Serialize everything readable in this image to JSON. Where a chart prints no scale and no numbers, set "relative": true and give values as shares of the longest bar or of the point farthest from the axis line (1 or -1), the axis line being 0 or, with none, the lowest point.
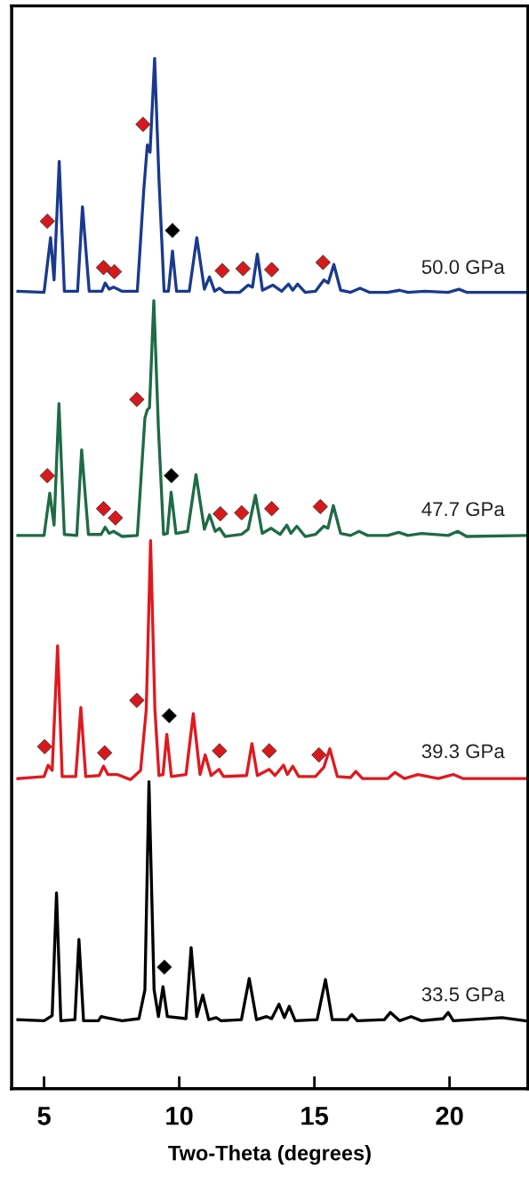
{
  "chart_data": {
    "type": "line",
    "xlabel": "Two-Theta (degrees)",
    "xlim": [
      3.8,
      22.9
    ],
    "xticks": [
      5,
      10,
      15,
      20
    ],
    "relative": true,
    "tick_labels": "x",
    "series": [
      {
        "name": "50.0 GPa",
        "color": "#1a3a8f",
        "x": [
          4.03,
          5.0,
          5.24,
          5.37,
          5.56,
          5.75,
          6.24,
          6.42,
          6.67,
          7.14,
          7.26,
          7.41,
          7.57,
          7.89,
          8.45,
          8.69,
          8.82,
          8.92,
          9.09,
          9.25,
          9.44,
          9.6,
          9.75,
          9.9,
          10.37,
          10.65,
          10.93,
          11.12,
          11.31,
          11.49,
          11.68,
          12.24,
          12.55,
          12.71,
          12.89,
          13.08,
          13.46,
          13.79,
          14.04,
          14.2,
          14.38,
          14.66,
          15.04,
          15.35,
          15.51,
          15.72,
          15.97,
          16.34,
          16.69,
          17.03,
          17.71,
          18.15,
          18.46,
          19.08,
          19.95,
          20.35,
          20.63,
          22.8
        ],
        "values": [
          0.774,
          0.773,
          0.826,
          0.785,
          0.9,
          0.774,
          0.774,
          0.856,
          0.774,
          0.774,
          0.782,
          0.776,
          0.778,
          0.774,
          0.774,
          0.873,
          0.916,
          0.909,
          1.0,
          0.883,
          0.774,
          0.774,
          0.813,
          0.774,
          0.774,
          0.826,
          0.776,
          0.788,
          0.774,
          0.777,
          0.773,
          0.773,
          0.78,
          0.778,
          0.81,
          0.775,
          0.78,
          0.774,
          0.781,
          0.775,
          0.781,
          0.773,
          0.774,
          0.785,
          0.782,
          0.8,
          0.775,
          0.773,
          0.777,
          0.773,
          0.773,
          0.775,
          0.773,
          0.774,
          0.773,
          0.776,
          0.773,
          0.773
        ]
      },
      {
        "name": "47.7 GPa",
        "color": "#1e6b45",
        "x": [
          4.03,
          5.0,
          5.21,
          5.37,
          5.55,
          5.75,
          6.21,
          6.39,
          6.64,
          7.11,
          7.26,
          7.41,
          7.57,
          7.89,
          8.45,
          8.73,
          8.82,
          8.9,
          9.06,
          9.23,
          9.42,
          9.56,
          9.7,
          9.88,
          10.31,
          10.62,
          10.93,
          11.12,
          11.33,
          11.49,
          11.7,
          12.3,
          12.55,
          12.82,
          13.07,
          13.4,
          13.73,
          13.98,
          14.13,
          14.35,
          14.66,
          15.04,
          15.35,
          15.5,
          15.7,
          15.97,
          16.34,
          16.65,
          16.97,
          17.71,
          18.12,
          18.46,
          18.96,
          19.95,
          20.3,
          20.63,
          22.8
        ],
        "values": [
          0.537,
          0.537,
          0.578,
          0.547,
          0.665,
          0.538,
          0.537,
          0.62,
          0.538,
          0.538,
          0.545,
          0.539,
          0.541,
          0.536,
          0.537,
          0.651,
          0.659,
          0.661,
          0.765,
          0.641,
          0.538,
          0.539,
          0.579,
          0.539,
          0.541,
          0.596,
          0.543,
          0.557,
          0.541,
          0.544,
          0.536,
          0.538,
          0.543,
          0.576,
          0.539,
          0.544,
          0.538,
          0.547,
          0.539,
          0.546,
          0.536,
          0.538,
          0.546,
          0.544,
          0.566,
          0.539,
          0.537,
          0.541,
          0.537,
          0.537,
          0.54,
          0.537,
          0.539,
          0.537,
          0.541,
          0.536,
          0.537
        ]
      },
      {
        "name": "39.3 GPa",
        "color": "#e0191f",
        "x": [
          4.03,
          5.0,
          5.15,
          5.3,
          5.5,
          5.67,
          6.17,
          6.36,
          6.54,
          7.04,
          7.2,
          7.36,
          7.7,
          8.2,
          8.57,
          8.78,
          8.94,
          9.1,
          9.25,
          9.4,
          9.54,
          9.71,
          10.25,
          10.52,
          10.77,
          10.96,
          11.18,
          11.47,
          11.64,
          12.49,
          12.69,
          12.89,
          13.33,
          13.54,
          13.86,
          14.0,
          14.2,
          14.42,
          15.04,
          15.35,
          15.57,
          15.85,
          16.34,
          16.53,
          16.78,
          17.71,
          17.98,
          18.33,
          18.83,
          19.58,
          20.14,
          20.51,
          22.8
        ],
        "values": [
          0.301,
          0.303,
          0.314,
          0.309,
          0.43,
          0.303,
          0.303,
          0.37,
          0.303,
          0.304,
          0.313,
          0.305,
          0.305,
          0.3,
          0.309,
          0.368,
          0.532,
          0.368,
          0.304,
          0.305,
          0.344,
          0.303,
          0.305,
          0.364,
          0.305,
          0.324,
          0.304,
          0.31,
          0.303,
          0.304,
          0.335,
          0.304,
          0.31,
          0.304,
          0.314,
          0.305,
          0.313,
          0.303,
          0.303,
          0.312,
          0.33,
          0.303,
          0.302,
          0.308,
          0.301,
          0.301,
          0.307,
          0.301,
          0.305,
          0.301,
          0.305,
          0.301,
          0.301
        ]
      },
      {
        "name": "33.5 GPa",
        "color": "#000000",
        "x": [
          4.03,
          5.0,
          5.3,
          5.46,
          5.62,
          6.14,
          6.29,
          6.46,
          7.01,
          7.11,
          7.29,
          7.89,
          8.51,
          8.73,
          8.88,
          9.07,
          9.23,
          9.4,
          9.56,
          10.25,
          10.44,
          10.65,
          10.87,
          11.09,
          11.37,
          11.55,
          12.3,
          12.59,
          12.86,
          13.23,
          13.42,
          13.69,
          13.89,
          14.07,
          14.29,
          15.1,
          15.41,
          15.66,
          16.22,
          16.38,
          16.59,
          17.59,
          17.81,
          18.15,
          18.58,
          18.96,
          19.76,
          19.95,
          20.14,
          21.94,
          22.8
        ],
        "values": [
          0.067,
          0.066,
          0.071,
          0.19,
          0.066,
          0.067,
          0.145,
          0.066,
          0.066,
          0.07,
          0.069,
          0.066,
          0.068,
          0.096,
          0.298,
          0.096,
          0.07,
          0.099,
          0.07,
          0.068,
          0.137,
          0.07,
          0.091,
          0.067,
          0.069,
          0.066,
          0.067,
          0.107,
          0.067,
          0.07,
          0.068,
          0.082,
          0.069,
          0.08,
          0.066,
          0.067,
          0.106,
          0.067,
          0.067,
          0.072,
          0.066,
          0.067,
          0.074,
          0.066,
          0.07,
          0.066,
          0.068,
          0.074,
          0.066,
          0.069,
          0.066
        ]
      },
      {
        "type": "scatter",
        "marker": "diamond",
        "color": "#d7191c",
        "x": [
          5.12,
          8.66,
          7.2,
          7.6,
          11.59,
          12.36,
          13.42,
          15.32,
          5.12,
          8.43,
          7.2,
          7.64,
          11.52,
          12.31,
          13.42,
          15.22,
          5.02,
          7.24,
          8.43,
          11.49,
          13.33,
          15.17
        ],
        "values": [
          0.842,
          0.936,
          0.797,
          0.793,
          0.794,
          0.796,
          0.795,
          0.802,
          0.595,
          0.669,
          0.563,
          0.554,
          0.558,
          0.559,
          0.563,
          0.565,
          0.332,
          0.326,
          0.377,
          0.328,
          0.328,
          0.324
        ]
      },
      {
        "type": "scatter",
        "marker": "diamond",
        "color": "#000000",
        "x": [
          9.75,
          9.71,
          9.63,
          9.45
        ],
        "values": [
          0.833,
          0.595,
          0.362,
          0.118
        ]
      }
    ]
  }
}
